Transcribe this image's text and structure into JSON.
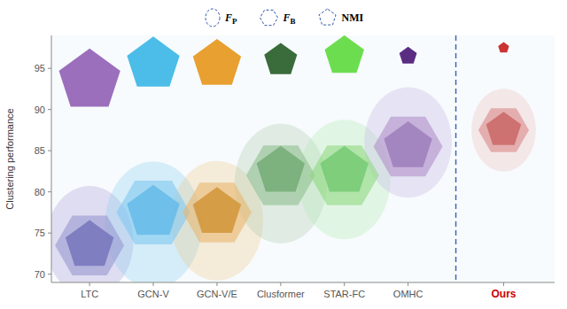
{
  "chart_data": {
    "type": "scatter",
    "categories": [
      "LTC",
      "GCN-V",
      "GCN-V/E",
      "Clusformer",
      "STAR-FC",
      "OMHC",
      "Ours"
    ],
    "ylabel": "Clustering performance",
    "ylim": [
      69,
      99
    ],
    "yticks": [
      70,
      75,
      80,
      85,
      90,
      95
    ],
    "grid": false,
    "legend": "top",
    "series": [
      {
        "name": "FP",
        "marker": "ellipse",
        "values": [
          74.0,
          76.0,
          76.5,
          81.0,
          81.5,
          86.0,
          87.5
        ],
        "rx": [
          38,
          42,
          40,
          40,
          40,
          38,
          28
        ],
        "ry": [
          48,
          55,
          52,
          52,
          52,
          48,
          36
        ],
        "colors": [
          "#a898d8",
          "#88ccf0",
          "#f0c888",
          "#a8c8a8",
          "#b0e8b0",
          "#c0b0e0",
          "#f0b8b8"
        ]
      },
      {
        "name": "FB",
        "marker": "hexagon",
        "values": [
          73.5,
          77.5,
          77.5,
          82.0,
          82.0,
          85.5,
          87.5
        ],
        "sizes": [
          30,
          32,
          30,
          30,
          30,
          30,
          22
        ],
        "colors": [
          "#9898d0",
          "#80c8f0",
          "#e8b870",
          "#90c090",
          "#90d880",
          "#b090c8",
          "#d88888"
        ]
      },
      {
        "name": "NMI",
        "marker": "pentagon",
        "values": [
          73.5,
          77.5,
          77.5,
          82.5,
          82.5,
          85.5,
          87.5
        ],
        "sizes": [
          22,
          24,
          22,
          22,
          22,
          22,
          16
        ],
        "colors": [
          "#7070b8",
          "#60b8e8",
          "#d09030",
          "#70a870",
          "#70c870",
          "#9878b8",
          "#c86060"
        ]
      },
      {
        "marker": "pentagon",
        "values": [
          93.5,
          95.5,
          95.5,
          96.0,
          96.5,
          96.5,
          97.5
        ],
        "sizes": [
          28,
          24,
          22,
          15,
          18,
          8,
          5
        ],
        "colors": [
          "#9b6fbc",
          "#4bbde8",
          "#e8a030",
          "#3a6b3a",
          "#6ddd50",
          "#5a2d82",
          "#cc3333"
        ]
      }
    ]
  }
}
